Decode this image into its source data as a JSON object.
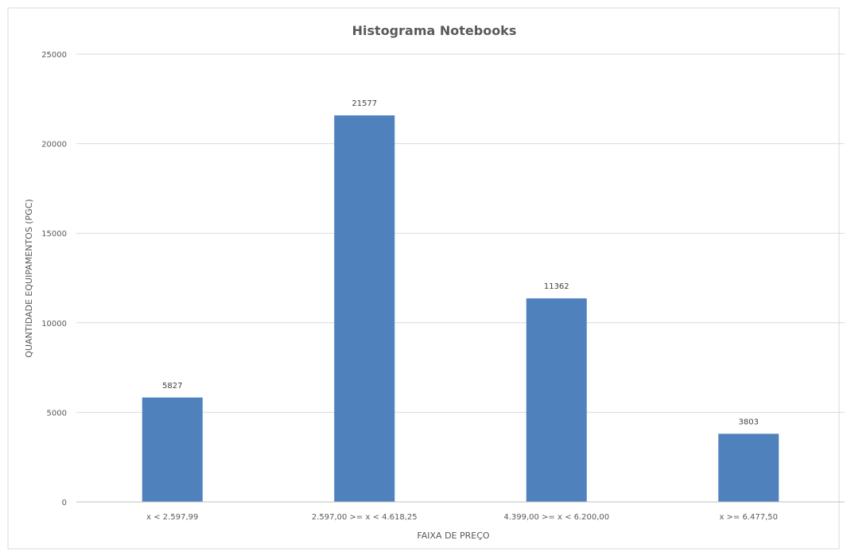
{
  "chart_data": {
    "type": "bar",
    "title": "Histograma  Notebooks",
    "xlabel": "FAIXA DE PREÇO",
    "ylabel": "QUANTIDADE EQUIPAMENTOS (PGC)",
    "categories": [
      "x < 2.597,99",
      "2.597,00 >= x < 4.618,25",
      "4.399,00 >= x < 6.200,00",
      "x >= 6.477,50"
    ],
    "values": [
      5827,
      21577,
      11362,
      3803
    ],
    "data_labels": [
      "5827",
      "21577",
      "11362",
      "3803"
    ],
    "ylim": [
      0,
      25000
    ],
    "yticks": [
      0,
      5000,
      10000,
      15000,
      20000,
      25000
    ],
    "ytick_labels": [
      "0",
      "5000",
      "10000",
      "15000",
      "20000",
      "25000"
    ],
    "grid": true,
    "legend": "none",
    "bar_color": "#4f81bd",
    "grid_color": "#d9d9d9"
  }
}
